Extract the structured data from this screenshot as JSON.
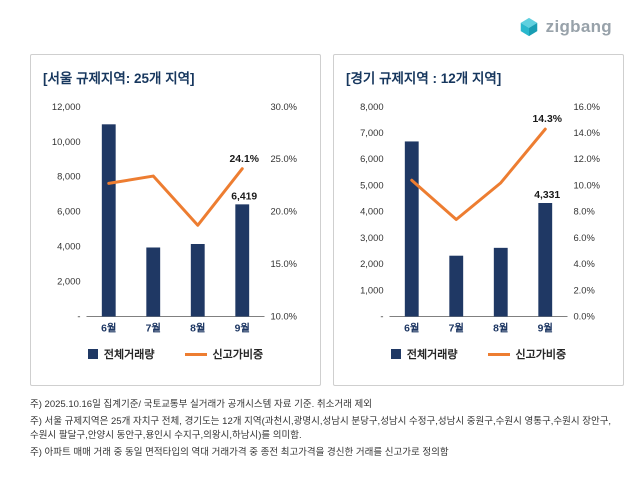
{
  "logo": {
    "text": "zigbang",
    "icon": "zigbang-cube-icon",
    "icon_colors": [
      "#5fd0df",
      "#2ab8cd",
      "#189db3"
    ],
    "text_color": "#98a2aa"
  },
  "chart_data": [
    {
      "type": "bar+line",
      "title": "[서울 규제지역: 25개 지역]",
      "categories": [
        "6월",
        "7월",
        "8월",
        "9월"
      ],
      "series": [
        {
          "name": "전체거래량",
          "type": "bar",
          "axis": "left",
          "color": "#1f3864",
          "values": [
            11000,
            3950,
            4150,
            6419
          ]
        },
        {
          "name": "신고가비중",
          "type": "line",
          "axis": "right",
          "color": "#ed7d31",
          "values": [
            22.7,
            23.4,
            18.7,
            24.1
          ]
        }
      ],
      "left_axis": {
        "min": 0,
        "max": 12000,
        "step": 2000,
        "zero_label": "-"
      },
      "right_axis": {
        "min": 10,
        "max": 30,
        "step": 5,
        "format": "percent"
      },
      "point_labels": [
        {
          "series": 0,
          "index": 3,
          "text": "6,419"
        },
        {
          "series": 1,
          "index": 3,
          "text": "24.1%"
        }
      ],
      "legend": [
        "전체거래량",
        "신고가비중"
      ],
      "legend_position": "bottom",
      "grid": false
    },
    {
      "type": "bar+line",
      "title": "[경기 규제지역 : 12개 지역]",
      "categories": [
        "6월",
        "7월",
        "8월",
        "9월"
      ],
      "series": [
        {
          "name": "전체거래량",
          "type": "bar",
          "axis": "left",
          "color": "#1f3864",
          "values": [
            6680,
            2320,
            2620,
            4331
          ]
        },
        {
          "name": "신고가비중",
          "type": "line",
          "axis": "right",
          "color": "#ed7d31",
          "values": [
            10.4,
            7.4,
            10.2,
            14.3
          ]
        }
      ],
      "left_axis": {
        "min": 0,
        "max": 8000,
        "step": 1000,
        "zero_label": "-"
      },
      "right_axis": {
        "min": 0,
        "max": 16,
        "step": 2,
        "format": "percent"
      },
      "point_labels": [
        {
          "series": 0,
          "index": 3,
          "text": "4,331"
        },
        {
          "series": 1,
          "index": 3,
          "text": "14.3%"
        }
      ],
      "legend": [
        "전체거래량",
        "신고가비중"
      ],
      "legend_position": "bottom",
      "grid": false
    }
  ],
  "footnotes": [
    "주) 2025.10.16일 집계기준/ 국토교통부 실거래가 공개시스템 자료 기준. 취소거래 제외",
    "주) 서울 규제지역은 25개 자치구 전체, 경기도는 12개 지역(과천시,광명시,성남시 분당구,성남시 수정구,성남시 중원구,수원시 영통구,수원시 장안구,수원시 팔달구,안양시 동안구,용인시 수지구,의왕시,하남시)를 의미함.",
    "주) 아파트 매매 거래 중 동일 면적타입의 역대 거래가격 중 종전 최고가격을 경신한 거래를 신고가로 정의함"
  ]
}
